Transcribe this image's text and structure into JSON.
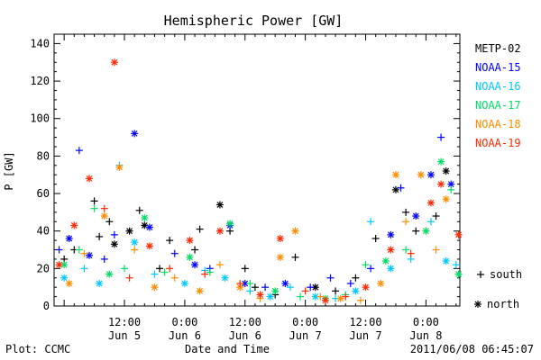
{
  "chart_data": {
    "type": "scatter",
    "title": "Hemispheric Power [GW]",
    "ylabel": "P [GW]",
    "xlabel": "Date and Time",
    "ylim": [
      0,
      145
    ],
    "y_ticks": [
      0,
      20,
      40,
      60,
      80,
      100,
      120,
      140
    ],
    "x_ticks": [
      {
        "time": "2011-06-05 12:00",
        "line1": "12:00",
        "line2": "Jun 5"
      },
      {
        "time": "2011-06-06 00:00",
        "line1": "0:00",
        "line2": "Jun 6"
      },
      {
        "time": "2011-06-06 12:00",
        "line1": "12:00",
        "line2": "Jun 6"
      },
      {
        "time": "2011-06-07 00:00",
        "line1": "0:00",
        "line2": "Jun 7"
      },
      {
        "time": "2011-06-07 12:00",
        "line1": "12:00",
        "line2": "Jun 7"
      },
      {
        "time": "2011-06-08 00:00",
        "line1": "0:00",
        "line2": "Jun 8"
      }
    ],
    "xlim": [
      "2011-06-04 22:00",
      "2011-06-08 06:45"
    ],
    "markers": {
      "south": "+",
      "north": "*"
    },
    "series": [
      {
        "name": "METP-02",
        "color": "#000000",
        "points": [
          [
            "2011-06-05 00:00",
            25,
            "s"
          ],
          [
            "2011-06-05 02:00",
            30,
            "s"
          ],
          [
            "2011-06-05 06:00",
            56,
            "s"
          ],
          [
            "2011-06-05 07:00",
            37,
            "s"
          ],
          [
            "2011-06-05 09:00",
            45,
            "s"
          ],
          [
            "2011-06-05 10:00",
            33,
            "n"
          ],
          [
            "2011-06-05 13:00",
            40,
            "n"
          ],
          [
            "2011-06-05 15:00",
            51,
            "s"
          ],
          [
            "2011-06-05 16:00",
            43,
            "n"
          ],
          [
            "2011-06-05 19:00",
            20,
            "s"
          ],
          [
            "2011-06-05 21:00",
            35,
            "s"
          ],
          [
            "2011-06-06 02:00",
            30,
            "s"
          ],
          [
            "2011-06-06 03:00",
            41,
            "s"
          ],
          [
            "2011-06-06 07:00",
            54,
            "n"
          ],
          [
            "2011-06-06 09:00",
            40,
            "s"
          ],
          [
            "2011-06-06 12:00",
            20,
            "s"
          ],
          [
            "2011-06-06 14:00",
            10,
            "s"
          ],
          [
            "2011-06-06 18:00",
            6,
            "s"
          ],
          [
            "2011-06-06 22:00",
            26,
            "s"
          ],
          [
            "2011-06-07 02:00",
            10,
            "n"
          ],
          [
            "2011-06-07 06:00",
            8,
            "s"
          ],
          [
            "2011-06-07 10:00",
            15,
            "s"
          ],
          [
            "2011-06-07 14:00",
            36,
            "s"
          ],
          [
            "2011-06-07 18:00",
            62,
            "n"
          ],
          [
            "2011-06-07 20:00",
            50,
            "s"
          ],
          [
            "2011-06-07 22:00",
            40,
            "s"
          ],
          [
            "2011-06-08 02:00",
            48,
            "s"
          ],
          [
            "2011-06-08 04:00",
            72,
            "n"
          ]
        ]
      },
      {
        "name": "NOAA-15",
        "color": "#0000ff",
        "points": [
          [
            "2011-06-04 23:00",
            30,
            "s"
          ],
          [
            "2011-06-05 01:00",
            36,
            "n"
          ],
          [
            "2011-06-05 03:00",
            83,
            "s"
          ],
          [
            "2011-06-05 05:00",
            27,
            "n"
          ],
          [
            "2011-06-05 08:00",
            25,
            "s"
          ],
          [
            "2011-06-05 10:00",
            38,
            "s"
          ],
          [
            "2011-06-05 14:00",
            92,
            "n"
          ],
          [
            "2011-06-05 17:00",
            42,
            "n"
          ],
          [
            "2011-06-05 22:00",
            28,
            "s"
          ],
          [
            "2011-06-06 02:00",
            22,
            "n"
          ],
          [
            "2011-06-06 05:00",
            20,
            "s"
          ],
          [
            "2011-06-06 09:00",
            43,
            "n"
          ],
          [
            "2011-06-06 12:00",
            12,
            "n"
          ],
          [
            "2011-06-06 16:00",
            10,
            "s"
          ],
          [
            "2011-06-06 20:00",
            12,
            "n"
          ],
          [
            "2011-06-07 01:00",
            10,
            "s"
          ],
          [
            "2011-06-07 05:00",
            15,
            "s"
          ],
          [
            "2011-06-07 09:00",
            12,
            "s"
          ],
          [
            "2011-06-07 13:00",
            20,
            "s"
          ],
          [
            "2011-06-07 17:00",
            38,
            "n"
          ],
          [
            "2011-06-07 19:00",
            63,
            "s"
          ],
          [
            "2011-06-07 22:00",
            48,
            "n"
          ],
          [
            "2011-06-08 01:00",
            70,
            "n"
          ],
          [
            "2011-06-08 03:00",
            90,
            "s"
          ],
          [
            "2011-06-08 05:00",
            65,
            "n"
          ]
        ]
      },
      {
        "name": "NOAA-16",
        "color": "#00c8ff",
        "points": [
          [
            "2011-06-05 00:00",
            15,
            "n"
          ],
          [
            "2011-06-05 04:00",
            20,
            "s"
          ],
          [
            "2011-06-05 07:00",
            12,
            "n"
          ],
          [
            "2011-06-05 11:00",
            75,
            "s"
          ],
          [
            "2011-06-05 14:00",
            34,
            "n"
          ],
          [
            "2011-06-05 18:00",
            17,
            "s"
          ],
          [
            "2011-06-06 00:00",
            12,
            "n"
          ],
          [
            "2011-06-06 04:00",
            19,
            "s"
          ],
          [
            "2011-06-06 08:00",
            15,
            "n"
          ],
          [
            "2011-06-06 13:00",
            8,
            "s"
          ],
          [
            "2011-06-06 17:00",
            5,
            "n"
          ],
          [
            "2011-06-06 21:00",
            10,
            "s"
          ],
          [
            "2011-06-07 02:00",
            5,
            "n"
          ],
          [
            "2011-06-07 06:00",
            4,
            "s"
          ],
          [
            "2011-06-07 10:00",
            8,
            "n"
          ],
          [
            "2011-06-07 13:00",
            45,
            "s"
          ],
          [
            "2011-06-07 17:00",
            20,
            "n"
          ],
          [
            "2011-06-07 21:00",
            25,
            "s"
          ],
          [
            "2011-06-08 01:00",
            45,
            "s"
          ],
          [
            "2011-06-08 04:00",
            24,
            "n"
          ],
          [
            "2011-06-08 06:00",
            22,
            "s"
          ]
        ]
      },
      {
        "name": "NOAA-17",
        "color": "#00dc64",
        "points": [
          [
            "2011-06-05 00:00",
            22,
            "n"
          ],
          [
            "2011-06-05 03:00",
            30,
            "s"
          ],
          [
            "2011-06-05 06:00",
            52,
            "s"
          ],
          [
            "2011-06-05 09:00",
            17,
            "n"
          ],
          [
            "2011-06-05 12:00",
            20,
            "s"
          ],
          [
            "2011-06-05 16:00",
            47,
            "n"
          ],
          [
            "2011-06-05 20:00",
            18,
            "s"
          ],
          [
            "2011-06-06 01:00",
            26,
            "n"
          ],
          [
            "2011-06-06 05:00",
            18,
            "s"
          ],
          [
            "2011-06-06 09:00",
            44,
            "n"
          ],
          [
            "2011-06-06 13:00",
            12,
            "s"
          ],
          [
            "2011-06-06 18:00",
            8,
            "n"
          ],
          [
            "2011-06-06 23:00",
            5,
            "s"
          ],
          [
            "2011-06-07 04:00",
            4,
            "n"
          ],
          [
            "2011-06-07 08:00",
            6,
            "s"
          ],
          [
            "2011-06-07 12:00",
            22,
            "s"
          ],
          [
            "2011-06-07 16:00",
            24,
            "n"
          ],
          [
            "2011-06-07 20:00",
            30,
            "s"
          ],
          [
            "2011-06-08 00:00",
            40,
            "n"
          ],
          [
            "2011-06-08 03:00",
            77,
            "n"
          ],
          [
            "2011-06-08 05:00",
            62,
            "s"
          ],
          [
            "2011-06-08 06:30",
            17,
            "n"
          ]
        ]
      },
      {
        "name": "NOAA-18",
        "color": "#ff8c00",
        "points": [
          [
            "2011-06-05 01:00",
            12,
            "n"
          ],
          [
            "2011-06-05 04:00",
            28,
            "s"
          ],
          [
            "2011-06-05 08:00",
            48,
            "n"
          ],
          [
            "2011-06-05 11:00",
            74,
            "n"
          ],
          [
            "2011-06-05 14:00",
            30,
            "s"
          ],
          [
            "2011-06-05 18:00",
            10,
            "n"
          ],
          [
            "2011-06-05 22:00",
            15,
            "s"
          ],
          [
            "2011-06-06 03:00",
            8,
            "n"
          ],
          [
            "2011-06-06 07:00",
            22,
            "s"
          ],
          [
            "2011-06-06 11:00",
            10,
            "n"
          ],
          [
            "2011-06-06 15:00",
            4,
            "s"
          ],
          [
            "2011-06-06 19:00",
            26,
            "n"
          ],
          [
            "2011-06-06 22:00",
            40,
            "n"
          ],
          [
            "2011-06-07 03:00",
            5,
            "s"
          ],
          [
            "2011-06-07 07:00",
            4,
            "n"
          ],
          [
            "2011-06-07 11:00",
            3,
            "s"
          ],
          [
            "2011-06-07 15:00",
            12,
            "n"
          ],
          [
            "2011-06-07 18:00",
            70,
            "n"
          ],
          [
            "2011-06-07 20:00",
            45,
            "s"
          ],
          [
            "2011-06-07 23:00",
            70,
            "n"
          ],
          [
            "2011-06-08 02:00",
            30,
            "s"
          ],
          [
            "2011-06-08 04:00",
            57,
            "n"
          ]
        ]
      },
      {
        "name": "NOAA-19",
        "color": "#ff2800",
        "points": [
          [
            "2011-06-04 23:00",
            22,
            "n"
          ],
          [
            "2011-06-05 02:00",
            43,
            "n"
          ],
          [
            "2011-06-05 05:00",
            68,
            "n"
          ],
          [
            "2011-06-05 08:00",
            52,
            "s"
          ],
          [
            "2011-06-05 10:00",
            130,
            "n"
          ],
          [
            "2011-06-05 13:00",
            15,
            "s"
          ],
          [
            "2011-06-05 17:00",
            32,
            "n"
          ],
          [
            "2011-06-05 21:00",
            20,
            "s"
          ],
          [
            "2011-06-06 01:00",
            35,
            "n"
          ],
          [
            "2011-06-06 04:00",
            17,
            "s"
          ],
          [
            "2011-06-06 07:00",
            40,
            "n"
          ],
          [
            "2011-06-06 11:00",
            12,
            "s"
          ],
          [
            "2011-06-06 15:00",
            6,
            "n"
          ],
          [
            "2011-06-06 19:00",
            36,
            "n"
          ],
          [
            "2011-06-07 00:00",
            8,
            "s"
          ],
          [
            "2011-06-07 04:00",
            3,
            "n"
          ],
          [
            "2011-06-07 08:00",
            5,
            "s"
          ],
          [
            "2011-06-07 12:00",
            10,
            "n"
          ],
          [
            "2011-06-07 17:00",
            30,
            "n"
          ],
          [
            "2011-06-07 21:00",
            28,
            "s"
          ],
          [
            "2011-06-08 01:00",
            55,
            "n"
          ],
          [
            "2011-06-08 03:00",
            65,
            "n"
          ],
          [
            "2011-06-08 06:30",
            38,
            "n"
          ]
        ]
      }
    ],
    "legend_position": "right",
    "marker_legend": {
      "south": "south",
      "north": "north"
    },
    "footer": {
      "left": "Plot: CCMC",
      "right": "2011/06/08 06:45:07"
    }
  }
}
